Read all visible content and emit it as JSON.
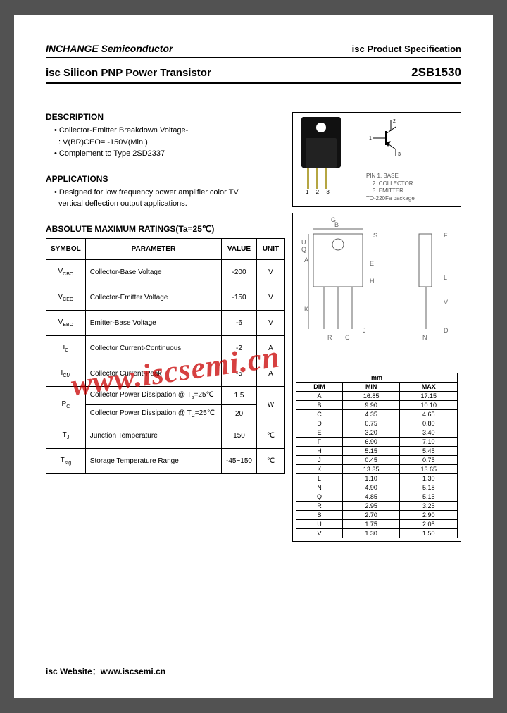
{
  "header": {
    "company": "INCHANGE Semiconductor",
    "docType": "isc Product Specification"
  },
  "title": {
    "left": "isc Silicon PNP Power Transistor",
    "partNo": "2SB1530"
  },
  "description": {
    "heading": "DESCRIPTION",
    "lines": [
      "Collector-Emitter Breakdown Voltage-",
      ": V(BR)CEO= -150V(Min.)",
      "Complement to Type 2SD2337"
    ]
  },
  "applications": {
    "heading": "APPLICATIONS",
    "lines": [
      "Designed for low frequency power amplifier color TV",
      "vertical deflection output applications."
    ]
  },
  "ratings": {
    "heading": "ABSOLUTE MAXIMUM RATINGS(Ta=25℃)",
    "columns": [
      "SYMBOL",
      "PARAMETER",
      "VALUE",
      "UNIT"
    ],
    "rows": [
      {
        "sym": "V<sub>CBO</sub>",
        "param": "Collector-Base Voltage",
        "val": "-200",
        "unit": "V"
      },
      {
        "sym": "V<sub>CEO</sub>",
        "param": "Collector-Emitter Voltage",
        "val": "-150",
        "unit": "V"
      },
      {
        "sym": "V<sub>EBO</sub>",
        "param": "Emitter-Base Voltage",
        "val": "-6",
        "unit": "V"
      },
      {
        "sym": "I<sub>C</sub>",
        "param": "Collector Current-Continuous",
        "val": "-2",
        "unit": "A"
      },
      {
        "sym": "I<sub>CM</sub>",
        "param": "Collector Current-Peak",
        "val": "-5",
        "unit": "A"
      },
      {
        "sym": "P<sub>C</sub>",
        "param": "Collector Power Dissipation @ T<sub>a</sub>=25℃",
        "val": "1.5",
        "unit": "W",
        "rowspan": 2
      },
      {
        "sym": "",
        "param": "Collector Power Dissipation @ T<sub>C</sub>=25℃",
        "val": "20",
        "unit": ""
      },
      {
        "sym": "T<sub>J</sub>",
        "param": "Junction Temperature",
        "val": "150",
        "unit": "℃"
      },
      {
        "sym": "T<sub>stg</sub>",
        "param": "Storage Temperature Range",
        "val": "-45~150",
        "unit": "℃"
      }
    ]
  },
  "package": {
    "pinNumbers": "1 2 3",
    "schematicPins": [
      "1",
      "2",
      "3"
    ],
    "pinLabels": "PIN 1. BASE\n    2. COLLECTOR\n    3. EMITTER\nTO-220Fa package"
  },
  "mechDrawLabels": [
    "A",
    "B",
    "C",
    "D",
    "E",
    "F",
    "G",
    "H",
    "J",
    "K",
    "L",
    "N",
    "Q",
    "R",
    "S",
    "U",
    "V"
  ],
  "dimensions": {
    "header": [
      "DIM",
      "MIN",
      "MAX"
    ],
    "unitLabel": "mm",
    "rows": [
      [
        "A",
        "16.85",
        "17.15"
      ],
      [
        "B",
        "9.90",
        "10.10"
      ],
      [
        "C",
        "4.35",
        "4.65"
      ],
      [
        "D",
        "0.75",
        "0.80"
      ],
      [
        "E",
        "3.20",
        "3.40"
      ],
      [
        "F",
        "6.90",
        "7.10"
      ],
      [
        "H",
        "5.15",
        "5.45"
      ],
      [
        "J",
        "0.45",
        "0.75"
      ],
      [
        "K",
        "13.35",
        "13.65"
      ],
      [
        "L",
        "1.10",
        "1.30"
      ],
      [
        "N",
        "4.90",
        "5.18"
      ],
      [
        "Q",
        "4.85",
        "5.15"
      ],
      [
        "R",
        "2.95",
        "3.25"
      ],
      [
        "S",
        "2.70",
        "2.90"
      ],
      [
        "U",
        "1.75",
        "2.05"
      ],
      [
        "V",
        "1.30",
        "1.50"
      ]
    ]
  },
  "watermark": "www.iscsemi.cn",
  "footer": "isc Website：www.iscsemi.cn",
  "colors": {
    "page_bg": "#ffffff",
    "text": "#000000",
    "watermark": "rgba(200,0,0,0.75)",
    "lead": "#b5a642",
    "pkg_body": "#111111",
    "dim_lines": "#666666"
  }
}
